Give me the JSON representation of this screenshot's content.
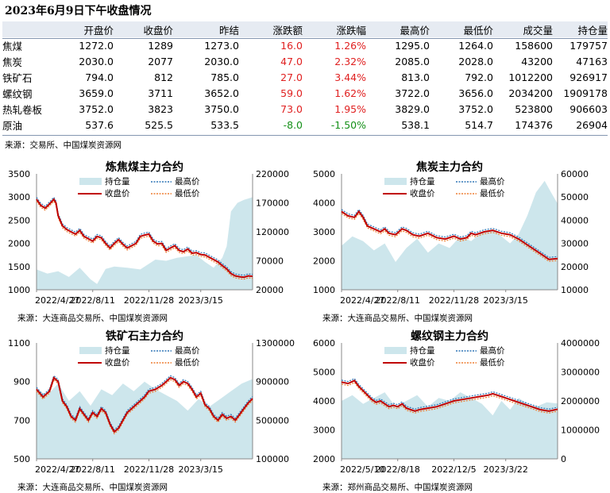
{
  "title": "2023年6月9日下午收盘情况",
  "table": {
    "headers": [
      "",
      "开盘价",
      "收盘价",
      "昨结",
      "涨跌额",
      "涨跌幅",
      "最高价",
      "最低价",
      "成交量",
      "持仓量"
    ],
    "rows": [
      [
        "焦煤",
        "1272.0",
        "1289",
        "1273.0",
        "16.0",
        "1.26%",
        "1295.0",
        "1264.0",
        "158600",
        "179757"
      ],
      [
        "焦炭",
        "2030.0",
        "2077",
        "2030.0",
        "47.0",
        "2.32%",
        "2085.0",
        "2028.0",
        "43200",
        "47163"
      ],
      [
        "铁矿石",
        "794.0",
        "812",
        "785.0",
        "27.0",
        "3.44%",
        "813.0",
        "792.0",
        "1012200",
        "926917"
      ],
      [
        "螺纹钢",
        "3659.0",
        "3711",
        "3652.0",
        "59.0",
        "1.62%",
        "3722.0",
        "3656.0",
        "2034200",
        "1909178"
      ],
      [
        "热轧卷板",
        "3752.0",
        "3823",
        "3750.0",
        "73.0",
        "1.95%",
        "3829.0",
        "3752.0",
        "523800",
        "906603"
      ],
      [
        "原油",
        "537.6",
        "525.5",
        "533.5",
        "-8.0",
        "-1.50%",
        "538.1",
        "514.7",
        "174376",
        "26904"
      ]
    ],
    "up_color": "#e02020",
    "down_color": "#149018"
  },
  "table_source": "来源：交易所、中国煤炭资源网",
  "colors": {
    "close": "#c00000",
    "high": "#2e75b6",
    "low": "#ed7d31",
    "oi": "#cde6ec",
    "header_bg": "#e6ebf2",
    "rule": "#8496b0"
  },
  "legend": {
    "oi": "持仓量",
    "high": "最高价",
    "close": "收盘价",
    "low": "最低价"
  },
  "chart_data": [
    {
      "type": "line",
      "title": "炼焦煤主力合约",
      "source": "来源：大连商品交易所、中国煤炭资源网",
      "x_ticks": [
        "2022/4/27",
        "2022/8/11",
        "2022/11/28",
        "2023/3/15"
      ],
      "x_tick_pos": [
        0.0,
        0.26,
        0.52,
        0.76
      ],
      "ylim": [
        1000,
        3500
      ],
      "y_ticks": [
        1000,
        1500,
        2000,
        2500,
        3000,
        3500
      ],
      "y2lim": [
        20000,
        220000
      ],
      "y2_ticks": [
        20000,
        70000,
        120000,
        170000,
        220000
      ],
      "close": [
        [
          0,
          2950
        ],
        [
          0.02,
          2820
        ],
        [
          0.04,
          2760
        ],
        [
          0.06,
          2850
        ],
        [
          0.08,
          2950
        ],
        [
          0.09,
          2870
        ],
        [
          0.1,
          2600
        ],
        [
          0.12,
          2380
        ],
        [
          0.14,
          2300
        ],
        [
          0.16,
          2250
        ],
        [
          0.18,
          2200
        ],
        [
          0.2,
          2280
        ],
        [
          0.22,
          2150
        ],
        [
          0.24,
          2100
        ],
        [
          0.26,
          2050
        ],
        [
          0.28,
          2150
        ],
        [
          0.3,
          2120
        ],
        [
          0.32,
          2000
        ],
        [
          0.34,
          1900
        ],
        [
          0.36,
          2000
        ],
        [
          0.38,
          2080
        ],
        [
          0.4,
          1980
        ],
        [
          0.42,
          1900
        ],
        [
          0.44,
          1950
        ],
        [
          0.46,
          2000
        ],
        [
          0.48,
          2150
        ],
        [
          0.5,
          2180
        ],
        [
          0.52,
          2200
        ],
        [
          0.54,
          2050
        ],
        [
          0.56,
          1990
        ],
        [
          0.58,
          2000
        ],
        [
          0.6,
          1850
        ],
        [
          0.62,
          1900
        ],
        [
          0.64,
          1950
        ],
        [
          0.66,
          1850
        ],
        [
          0.68,
          1820
        ],
        [
          0.7,
          1880
        ],
        [
          0.72,
          1790
        ],
        [
          0.74,
          1800
        ],
        [
          0.76,
          1760
        ],
        [
          0.78,
          1750
        ],
        [
          0.8,
          1700
        ],
        [
          0.82,
          1650
        ],
        [
          0.84,
          1600
        ],
        [
          0.86,
          1520
        ],
        [
          0.88,
          1450
        ],
        [
          0.9,
          1350
        ],
        [
          0.92,
          1300
        ],
        [
          0.94,
          1280
        ],
        [
          0.96,
          1270
        ],
        [
          0.98,
          1300
        ],
        [
          1.0,
          1289
        ]
      ],
      "oi": [
        [
          0,
          55000
        ],
        [
          0.05,
          48000
        ],
        [
          0.1,
          52000
        ],
        [
          0.15,
          42000
        ],
        [
          0.2,
          58000
        ],
        [
          0.25,
          38000
        ],
        [
          0.28,
          30000
        ],
        [
          0.32,
          56000
        ],
        [
          0.36,
          60000
        ],
        [
          0.42,
          58000
        ],
        [
          0.48,
          55000
        ],
        [
          0.55,
          72000
        ],
        [
          0.6,
          70000
        ],
        [
          0.65,
          75000
        ],
        [
          0.7,
          78000
        ],
        [
          0.74,
          80000
        ],
        [
          0.78,
          68000
        ],
        [
          0.82,
          58000
        ],
        [
          0.86,
          75000
        ],
        [
          0.88,
          95000
        ],
        [
          0.9,
          155000
        ],
        [
          0.93,
          170000
        ],
        [
          0.96,
          175000
        ],
        [
          1.0,
          179757
        ]
      ]
    },
    {
      "type": "line",
      "title": "焦炭主力合约",
      "source": "来源：大连商品交易所、中国煤炭资源网",
      "x_ticks": [
        "2022/4/27",
        "2022/8/11",
        "2022/11/28",
        "2023/3/15"
      ],
      "x_tick_pos": [
        0.0,
        0.26,
        0.52,
        0.76
      ],
      "ylim": [
        1000,
        5000
      ],
      "y_ticks": [
        1000,
        2000,
        3000,
        4000,
        5000
      ],
      "y2lim": [
        10000,
        60000
      ],
      "y2_ticks": [
        10000,
        20000,
        30000,
        40000,
        50000,
        60000
      ],
      "close": [
        [
          0,
          3700
        ],
        [
          0.03,
          3550
        ],
        [
          0.06,
          3500
        ],
        [
          0.08,
          3700
        ],
        [
          0.1,
          3500
        ],
        [
          0.12,
          3200
        ],
        [
          0.15,
          3100
        ],
        [
          0.18,
          3000
        ],
        [
          0.2,
          3100
        ],
        [
          0.22,
          2950
        ],
        [
          0.25,
          2900
        ],
        [
          0.28,
          3100
        ],
        [
          0.3,
          3050
        ],
        [
          0.33,
          2900
        ],
        [
          0.36,
          2850
        ],
        [
          0.4,
          2950
        ],
        [
          0.44,
          2800
        ],
        [
          0.48,
          2750
        ],
        [
          0.52,
          2850
        ],
        [
          0.55,
          2750
        ],
        [
          0.58,
          2800
        ],
        [
          0.6,
          2950
        ],
        [
          0.62,
          2900
        ],
        [
          0.66,
          3000
        ],
        [
          0.7,
          3050
        ],
        [
          0.74,
          2950
        ],
        [
          0.78,
          2900
        ],
        [
          0.82,
          2750
        ],
        [
          0.86,
          2550
        ],
        [
          0.9,
          2350
        ],
        [
          0.93,
          2200
        ],
        [
          0.96,
          2050
        ],
        [
          1.0,
          2077
        ]
      ],
      "oi": [
        [
          0,
          29000
        ],
        [
          0.05,
          33000
        ],
        [
          0.1,
          31000
        ],
        [
          0.15,
          27000
        ],
        [
          0.2,
          30000
        ],
        [
          0.25,
          22000
        ],
        [
          0.3,
          28000
        ],
        [
          0.35,
          32000
        ],
        [
          0.4,
          26000
        ],
        [
          0.45,
          30000
        ],
        [
          0.5,
          28000
        ],
        [
          0.55,
          33000
        ],
        [
          0.6,
          31000
        ],
        [
          0.65,
          35000
        ],
        [
          0.7,
          36000
        ],
        [
          0.74,
          33000
        ],
        [
          0.78,
          30000
        ],
        [
          0.82,
          34000
        ],
        [
          0.86,
          42000
        ],
        [
          0.9,
          52000
        ],
        [
          0.94,
          57000
        ],
        [
          0.97,
          52000
        ],
        [
          1.0,
          47163
        ]
      ]
    },
    {
      "type": "line",
      "title": "铁矿石主力合约",
      "source": "来源：大连商品交易所、中国煤炭资源网",
      "x_ticks": [
        "2022/4/27",
        "2022/8/11",
        "2022/11/28",
        "2023/3/15"
      ],
      "x_tick_pos": [
        0.0,
        0.26,
        0.52,
        0.76
      ],
      "ylim": [
        500,
        1100
      ],
      "y_ticks": [
        500,
        700,
        900,
        1100
      ],
      "y2lim": [
        100000,
        1300000
      ],
      "y2_ticks": [
        100000,
        500000,
        900000,
        1300000
      ],
      "close": [
        [
          0,
          860
        ],
        [
          0.03,
          820
        ],
        [
          0.06,
          850
        ],
        [
          0.08,
          920
        ],
        [
          0.1,
          900
        ],
        [
          0.12,
          800
        ],
        [
          0.14,
          770
        ],
        [
          0.16,
          720
        ],
        [
          0.18,
          700
        ],
        [
          0.2,
          760
        ],
        [
          0.22,
          730
        ],
        [
          0.24,
          700
        ],
        [
          0.26,
          740
        ],
        [
          0.28,
          720
        ],
        [
          0.3,
          760
        ],
        [
          0.32,
          740
        ],
        [
          0.34,
          680
        ],
        [
          0.36,
          640
        ],
        [
          0.38,
          660
        ],
        [
          0.4,
          700
        ],
        [
          0.42,
          740
        ],
        [
          0.44,
          760
        ],
        [
          0.46,
          780
        ],
        [
          0.48,
          800
        ],
        [
          0.5,
          820
        ],
        [
          0.52,
          850
        ],
        [
          0.55,
          860
        ],
        [
          0.58,
          880
        ],
        [
          0.6,
          900
        ],
        [
          0.62,
          920
        ],
        [
          0.64,
          910
        ],
        [
          0.66,
          880
        ],
        [
          0.68,
          900
        ],
        [
          0.7,
          890
        ],
        [
          0.72,
          860
        ],
        [
          0.74,
          820
        ],
        [
          0.76,
          840
        ],
        [
          0.78,
          780
        ],
        [
          0.8,
          760
        ],
        [
          0.82,
          720
        ],
        [
          0.84,
          700
        ],
        [
          0.86,
          730
        ],
        [
          0.88,
          710
        ],
        [
          0.9,
          720
        ],
        [
          0.92,
          700
        ],
        [
          0.94,
          730
        ],
        [
          0.96,
          760
        ],
        [
          0.98,
          790
        ],
        [
          1.0,
          812
        ]
      ],
      "oi": [
        [
          0,
          820000
        ],
        [
          0.05,
          760000
        ],
        [
          0.1,
          880000
        ],
        [
          0.15,
          700000
        ],
        [
          0.2,
          800000
        ],
        [
          0.25,
          650000
        ],
        [
          0.3,
          820000
        ],
        [
          0.35,
          760000
        ],
        [
          0.4,
          880000
        ],
        [
          0.45,
          800000
        ],
        [
          0.5,
          900000
        ],
        [
          0.55,
          820000
        ],
        [
          0.6,
          760000
        ],
        [
          0.65,
          700000
        ],
        [
          0.7,
          600000
        ],
        [
          0.75,
          720000
        ],
        [
          0.8,
          640000
        ],
        [
          0.85,
          720000
        ],
        [
          0.9,
          800000
        ],
        [
          0.95,
          880000
        ],
        [
          1.0,
          926917
        ]
      ]
    },
    {
      "type": "line",
      "title": "螺纹钢主力合约",
      "source": "来源：郑州商品交易所、中国煤炭资源网",
      "x_ticks": [
        "2022/5/10",
        "2022/8/18",
        "2022/12/5",
        "2023/3/22"
      ],
      "x_tick_pos": [
        0.0,
        0.26,
        0.52,
        0.76
      ],
      "ylim": [
        2000,
        6000
      ],
      "y_ticks": [
        2000,
        3000,
        4000,
        5000,
        6000
      ],
      "y2lim": [
        0,
        4000000
      ],
      "y2_ticks": [
        0,
        1000000,
        2000000,
        3000000,
        4000000
      ],
      "close": [
        [
          0,
          4650
        ],
        [
          0.03,
          4600
        ],
        [
          0.06,
          4700
        ],
        [
          0.08,
          4500
        ],
        [
          0.1,
          4350
        ],
        [
          0.12,
          4200
        ],
        [
          0.14,
          4050
        ],
        [
          0.16,
          3950
        ],
        [
          0.18,
          4000
        ],
        [
          0.2,
          3900
        ],
        [
          0.22,
          3800
        ],
        [
          0.24,
          3850
        ],
        [
          0.26,
          3800
        ],
        [
          0.28,
          3900
        ],
        [
          0.3,
          3750
        ],
        [
          0.32,
          3700
        ],
        [
          0.34,
          3650
        ],
        [
          0.36,
          3700
        ],
        [
          0.4,
          3750
        ],
        [
          0.44,
          3800
        ],
        [
          0.48,
          3900
        ],
        [
          0.52,
          4000
        ],
        [
          0.56,
          4050
        ],
        [
          0.6,
          4100
        ],
        [
          0.64,
          4150
        ],
        [
          0.68,
          4200
        ],
        [
          0.7,
          4250
        ],
        [
          0.72,
          4200
        ],
        [
          0.74,
          4150
        ],
        [
          0.76,
          4100
        ],
        [
          0.78,
          4050
        ],
        [
          0.8,
          4000
        ],
        [
          0.84,
          3900
        ],
        [
          0.88,
          3800
        ],
        [
          0.92,
          3700
        ],
        [
          0.96,
          3650
        ],
        [
          1.0,
          3711
        ]
      ],
      "oi": [
        [
          0,
          2000000
        ],
        [
          0.05,
          2200000
        ],
        [
          0.1,
          1900000
        ],
        [
          0.15,
          2100000
        ],
        [
          0.2,
          2300000
        ],
        [
          0.25,
          1800000
        ],
        [
          0.3,
          2000000
        ],
        [
          0.35,
          2200000
        ],
        [
          0.4,
          1800000
        ],
        [
          0.45,
          2100000
        ],
        [
          0.5,
          2000000
        ],
        [
          0.55,
          2300000
        ],
        [
          0.6,
          2100000
        ],
        [
          0.65,
          1900000
        ],
        [
          0.7,
          1500000
        ],
        [
          0.74,
          2000000
        ],
        [
          0.78,
          1700000
        ],
        [
          0.82,
          2100000
        ],
        [
          0.86,
          1900000
        ],
        [
          0.9,
          1800000
        ],
        [
          0.95,
          1950000
        ],
        [
          1.0,
          1909178
        ]
      ]
    }
  ]
}
